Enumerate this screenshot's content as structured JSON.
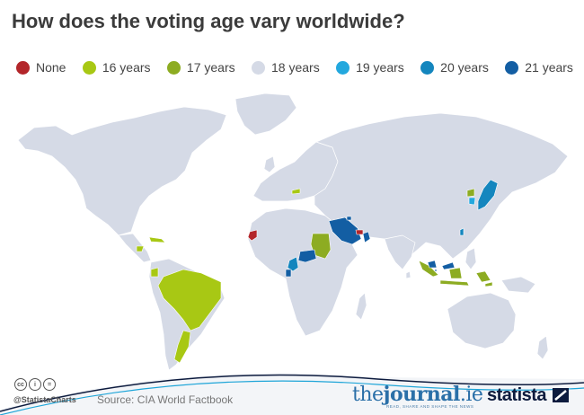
{
  "title": "How does the voting age vary worldwide?",
  "legend": [
    {
      "label": "None",
      "color": "#b3262a"
    },
    {
      "label": "16 years",
      "color": "#a8c814"
    },
    {
      "label": "17 years",
      "color": "#8dac22"
    },
    {
      "label": "18 years",
      "color": "#d5dae6"
    },
    {
      "label": "19 years",
      "color": "#23a8de"
    },
    {
      "label": "20 years",
      "color": "#1486be"
    },
    {
      "label": "21 years",
      "color": "#135ea3"
    }
  ],
  "map": {
    "base_color": "#d5dae6",
    "border_color": "#ffffff",
    "highlighted": [
      {
        "region": "Brazil",
        "category": "16 years"
      },
      {
        "region": "Argentina",
        "category": "16 years"
      },
      {
        "region": "Ecuador",
        "category": "16 years"
      },
      {
        "region": "Nicaragua",
        "category": "16 years"
      },
      {
        "region": "Cuba",
        "category": "16 years"
      },
      {
        "region": "Austria",
        "category": "16 years"
      },
      {
        "region": "Sudan",
        "category": "17 years"
      },
      {
        "region": "Indonesia",
        "category": "17 years"
      },
      {
        "region": "East Timor",
        "category": "17 years"
      },
      {
        "region": "North Korea",
        "category": "17 years"
      },
      {
        "region": "South Korea",
        "category": "19 years"
      },
      {
        "region": "Japan",
        "category": "20 years"
      },
      {
        "region": "Taiwan",
        "category": "20 years"
      },
      {
        "region": "Cameroon",
        "category": "20 years"
      },
      {
        "region": "Saudi Arabia",
        "category": "21 years"
      },
      {
        "region": "Kuwait",
        "category": "21 years"
      },
      {
        "region": "Oman",
        "category": "21 years"
      },
      {
        "region": "Singapore",
        "category": "21 years"
      },
      {
        "region": "Malaysia",
        "category": "21 years"
      },
      {
        "region": "Central African Republic",
        "category": "21 years"
      },
      {
        "region": "Gabon",
        "category": "21 years"
      },
      {
        "region": "United Arab Emirates",
        "category": "None"
      },
      {
        "region": "Western Sahara",
        "category": "None"
      }
    ]
  },
  "footer": {
    "handle": "@StatistaCharts",
    "source": "Source: CIA World Factbook",
    "partner_prefix": "the",
    "partner_bold": "journal",
    "partner_suffix": ".ie",
    "partner_tagline": "READ, SHARE AND SHAPE THE NEWS",
    "brand": "statista",
    "license_icons": [
      "cc-icon",
      "by-icon",
      "nd-icon"
    ]
  }
}
